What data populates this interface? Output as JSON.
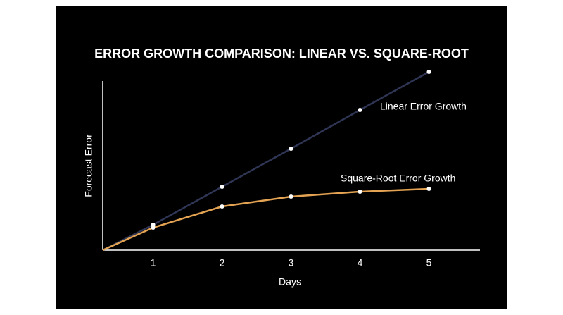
{
  "chart_data": {
    "type": "line",
    "title": "ERROR GROWTH COMPARISON: LINEAR VS. SQUARE-ROOT",
    "x_label": "Days",
    "y_label": "Forecast Error",
    "x": [
      0.27,
      1,
      2,
      3,
      4,
      5
    ],
    "xlim": [
      0.27,
      5.74
    ],
    "xticks": [
      1,
      2,
      3,
      4,
      5
    ],
    "ylim": [
      0,
      260
    ],
    "series": [
      {
        "name": "Linear Error Growth",
        "color": "#2f3554",
        "values": [
          0,
          36,
          90,
          144,
          199,
          253
        ]
      },
      {
        "name": "Square-Root Error Growth",
        "color": "#e3a352",
        "values": [
          0,
          32,
          62,
          76,
          83,
          87
        ]
      }
    ]
  }
}
